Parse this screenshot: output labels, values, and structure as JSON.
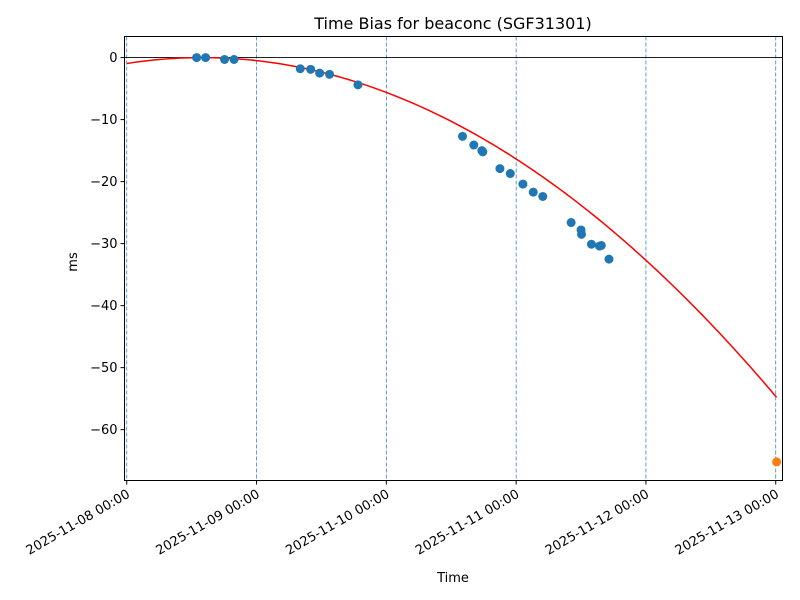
{
  "chart_data": {
    "type": "scatter",
    "title": "Time Bias for beaconc (SGF31301)",
    "xlabel": "Time",
    "ylabel": "ms",
    "x_ticks": [
      "2025-11-08 00:00",
      "2025-11-09 00:00",
      "2025-11-10 00:00",
      "2025-11-11 00:00",
      "2025-11-12 00:00",
      "2025-11-13 00:00"
    ],
    "y_ticks": [
      "0",
      "−10",
      "−20",
      "−30",
      "−40",
      "−50",
      "−60"
    ],
    "xlim": [
      "2025-11-07 23:35",
      "2025-11-13 01:15"
    ],
    "ylim": [
      -68.2,
      3.4
    ],
    "grid": "vertical dashed at x ticks",
    "zero_line": 0,
    "series": [
      {
        "kind": "scatter",
        "color": "#1f77b4",
        "points": [
          {
            "x": "2025-11-08 12:55",
            "y": 0.0
          },
          {
            "x": "2025-11-08 14:35",
            "y": 0.0
          },
          {
            "x": "2025-11-08 18:05",
            "y": -0.3
          },
          {
            "x": "2025-11-08 19:50",
            "y": -0.3
          },
          {
            "x": "2025-11-09 08:05",
            "y": -1.8
          },
          {
            "x": "2025-11-09 10:00",
            "y": -1.9
          },
          {
            "x": "2025-11-09 11:40",
            "y": -2.5
          },
          {
            "x": "2025-11-09 13:30",
            "y": -2.7
          },
          {
            "x": "2025-11-09 18:45",
            "y": -4.4
          },
          {
            "x": "2025-11-10 14:05",
            "y": -12.7
          },
          {
            "x": "2025-11-10 16:10",
            "y": -14.1
          },
          {
            "x": "2025-11-10 17:40",
            "y": -15.0
          },
          {
            "x": "2025-11-10 17:50",
            "y": -15.2
          },
          {
            "x": "2025-11-10 21:00",
            "y": -17.9
          },
          {
            "x": "2025-11-10 22:55",
            "y": -18.7
          },
          {
            "x": "2025-11-11 01:15",
            "y": -20.4
          },
          {
            "x": "2025-11-11 03:10",
            "y": -21.7
          },
          {
            "x": "2025-11-11 04:55",
            "y": -22.4
          },
          {
            "x": "2025-11-11 10:10",
            "y": -26.6
          },
          {
            "x": "2025-11-11 12:00",
            "y": -27.8
          },
          {
            "x": "2025-11-11 12:05",
            "y": -28.5
          },
          {
            "x": "2025-11-11 13:55",
            "y": -30.1
          },
          {
            "x": "2025-11-11 15:25",
            "y": -30.4
          },
          {
            "x": "2025-11-11 15:45",
            "y": -30.3
          },
          {
            "x": "2025-11-11 17:10",
            "y": -32.5
          }
        ]
      },
      {
        "kind": "line",
        "color": "#ff0000",
        "fit": {
          "peak_x": "2025-11-08 14:00",
          "peak_y": 0.0,
          "a_per_day2": -2.8
        }
      },
      {
        "kind": "scatter",
        "color": "#ff7f0e",
        "points": [
          {
            "x": "2025-11-13 00:10",
            "y": -65.2
          }
        ]
      }
    ]
  }
}
